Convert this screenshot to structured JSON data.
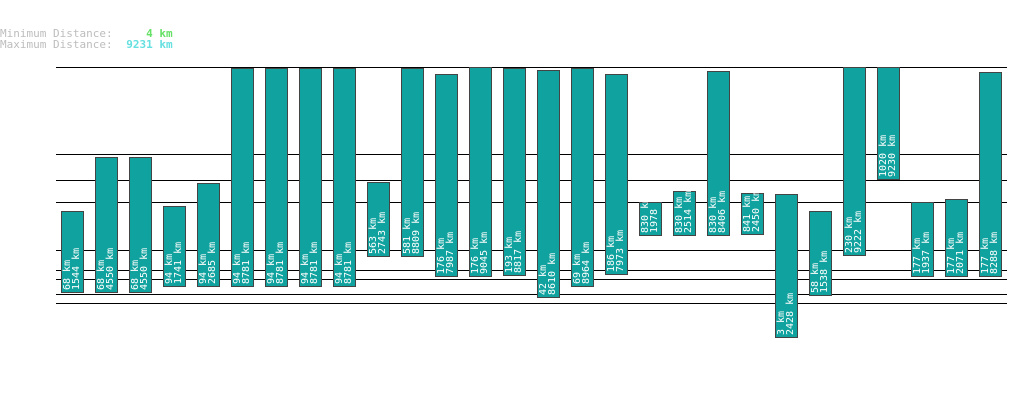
{
  "summary": {
    "min_label": "Minimum Distance:",
    "min_value": "4 km",
    "max_label": "Maximum Distance:",
    "max_value": "9231 km"
  },
  "colors": {
    "bar": "#10a29e",
    "bar_border": "#444444",
    "grid": "#000000",
    "label": "#ffffff"
  },
  "chart_data": {
    "type": "bar",
    "bars": [
      {
        "top_value": 4330,
        "bottom_value": 1544,
        "label_a": "68 km",
        "label_b": "1544 km"
      },
      {
        "top_value": 6150,
        "bottom_value": 1544,
        "label_a": "68 km",
        "label_b": "4550 km"
      },
      {
        "top_value": 6150,
        "bottom_value": 1544,
        "label_a": "68 km",
        "label_b": "4550 km"
      },
      {
        "top_value": 4480,
        "bottom_value": 1741,
        "label_a": "94 km",
        "label_b": "1741 km"
      },
      {
        "top_value": 5280,
        "bottom_value": 1741,
        "label_a": "94 km",
        "label_b": "2685 km"
      },
      {
        "top_value": 9181,
        "bottom_value": 1741,
        "label_a": "94 km",
        "label_b": "8781 km"
      },
      {
        "top_value": 9181,
        "bottom_value": 1741,
        "label_a": "94 km",
        "label_b": "8781 km"
      },
      {
        "top_value": 9181,
        "bottom_value": 1741,
        "label_a": "94 km",
        "label_b": "8781 km"
      },
      {
        "top_value": 9181,
        "bottom_value": 1741,
        "label_a": "94 km",
        "label_b": "8781 km"
      },
      {
        "top_value": 5300,
        "bottom_value": 2743,
        "label_a": "563 km",
        "label_b": "2743 km"
      },
      {
        "top_value": 9181,
        "bottom_value": 2743,
        "label_a": "581 km",
        "label_b": "8809 km"
      },
      {
        "top_value": 8981,
        "bottom_value": 2080,
        "label_a": "176 km",
        "label_b": "7987 km"
      },
      {
        "top_value": 9231,
        "bottom_value": 2080,
        "label_a": "176 km",
        "label_b": "9045 km"
      },
      {
        "top_value": 9181,
        "bottom_value": 2100,
        "label_a": "193 km",
        "label_b": "8817 km"
      },
      {
        "top_value": 9131,
        "bottom_value": 1350,
        "label_a": "42 km",
        "label_b": "8610 km"
      },
      {
        "top_value": 9206,
        "bottom_value": 1741,
        "label_a": "69 km",
        "label_b": "8964 km"
      },
      {
        "top_value": 8981,
        "bottom_value": 2130,
        "label_a": "186 km",
        "label_b": "7973 km"
      },
      {
        "top_value": 4630,
        "bottom_value": 3470,
        "label_a": "830 km",
        "label_b": "1978 km"
      },
      {
        "top_value": 5000,
        "bottom_value": 3470,
        "label_a": "830 km",
        "label_b": "2514 km"
      },
      {
        "top_value": 9081,
        "bottom_value": 3470,
        "label_a": "830 km",
        "label_b": "8406 km"
      },
      {
        "top_value": 4930,
        "bottom_value": 3520,
        "label_a": "841 km",
        "label_b": "2450 km"
      },
      {
        "top_value": 4900,
        "bottom_value": 4,
        "label_a": "3 km",
        "label_b": "2428 km"
      },
      {
        "top_value": 4330,
        "bottom_value": 1430,
        "label_a": "58 km",
        "label_b": "1538 km"
      },
      {
        "top_value": 9231,
        "bottom_value": 2780,
        "label_a": "230 km",
        "label_b": "9222 km"
      },
      {
        "top_value": 9231,
        "bottom_value": 5370,
        "label_a": "1020 km",
        "label_b": "9230 km"
      },
      {
        "top_value": 4630,
        "bottom_value": 2080,
        "label_a": "177 km",
        "label_b": "1937 km"
      },
      {
        "top_value": 4730,
        "bottom_value": 2080,
        "label_a": "177 km",
        "label_b": "2071 km"
      },
      {
        "top_value": 9056,
        "bottom_value": 2080,
        "label_a": "177 km",
        "label_b": "8288 km"
      }
    ],
    "gridlines": [
      9231,
      6270,
      5370,
      4630,
      3000,
      2300,
      2000,
      1500,
      1200
    ],
    "ylim": [
      0,
      9231
    ],
    "grid": true,
    "legend": "none"
  }
}
